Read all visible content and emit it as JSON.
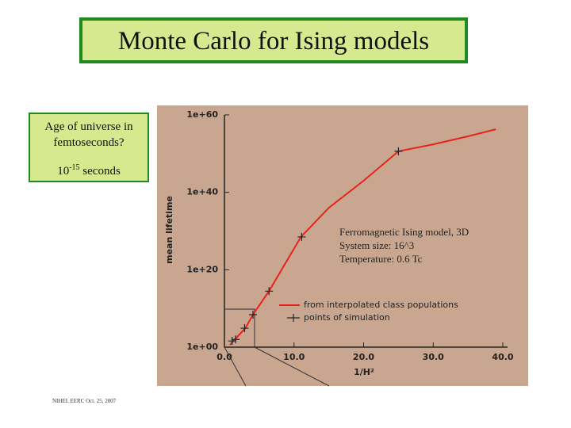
{
  "slide": {
    "title": "Monte Carlo for Ising models",
    "question": "Age of universe in femtoseconds?",
    "answer_base": "10",
    "answer_exp": "-15",
    "answer_unit": "seconds",
    "footer": "NIHEL EERC Oct. 25, 2007"
  },
  "chart_data": {
    "type": "line",
    "ylabel": "mean lifetime",
    "xlabel": "1/H²",
    "annotations": [
      "Ferromagnetic Ising model, 3D",
      "System size:  16^3",
      "Temperature: 0.6 Tc"
    ],
    "log_y": true,
    "xlim": [
      0,
      40
    ],
    "ylim": [
      1,
      1e+60
    ],
    "xticks": [
      {
        "value": 0,
        "label": "0.0"
      },
      {
        "value": 10,
        "label": "10.0"
      },
      {
        "value": 20,
        "label": "20.0"
      },
      {
        "value": 30,
        "label": "30.0"
      },
      {
        "value": 40,
        "label": "40.0"
      }
    ],
    "yticks": [
      {
        "value": 1,
        "label": "1e+00"
      },
      {
        "value": 1e+20,
        "label": "1e+20"
      },
      {
        "value": 1e+40,
        "label": "1e+40"
      },
      {
        "value": 1e+60,
        "label": "1e+60"
      }
    ],
    "series": [
      {
        "name": "from interpolated class populations",
        "color": "#e8231c",
        "marker": "line",
        "x": [
          0.8,
          1.5,
          3,
          4.1,
          6.4,
          11,
          15,
          20,
          25,
          30,
          35,
          39
        ],
        "values": [
          4,
          100,
          80000.0,
          250000000.0,
          300000000000000.0,
          3e+28,
          1e+36,
          1e+43,
          4e+50,
          2.5e+52,
          3e+54,
          2e+56
        ]
      },
      {
        "name": "points of simulation",
        "color": "#222222",
        "marker": "plus",
        "x": [
          1.1,
          1.6,
          2.9,
          4.1,
          6.4,
          11.1,
          25
        ],
        "values": [
          40,
          100,
          80000.0,
          250000000.0,
          300000000000000.0,
          3e+28,
          4e+50
        ]
      }
    ]
  }
}
